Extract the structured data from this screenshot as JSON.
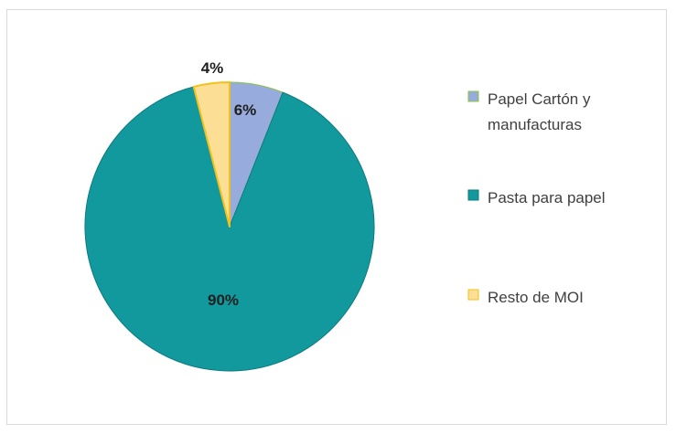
{
  "chart_data": {
    "type": "pie",
    "title": "",
    "categories": [
      "Papel Cartón y manufacturas",
      "Pasta para papel",
      "Resto de MOI"
    ],
    "values": [
      6,
      90,
      4
    ],
    "data_labels": [
      "6%",
      "90%",
      "4%"
    ],
    "legend_lines": [
      [
        "Papel Cartón y",
        "manufacturas"
      ],
      [
        "Pasta para papel"
      ],
      [
        "Resto de MOI"
      ]
    ],
    "legend_placement": "right",
    "colors": {
      "fills": [
        "#97acdc",
        "#12999e",
        "#fdde95"
      ],
      "strokes": [
        "#8dc53e",
        "#0c7a7f",
        "#f2c21b"
      ]
    }
  }
}
